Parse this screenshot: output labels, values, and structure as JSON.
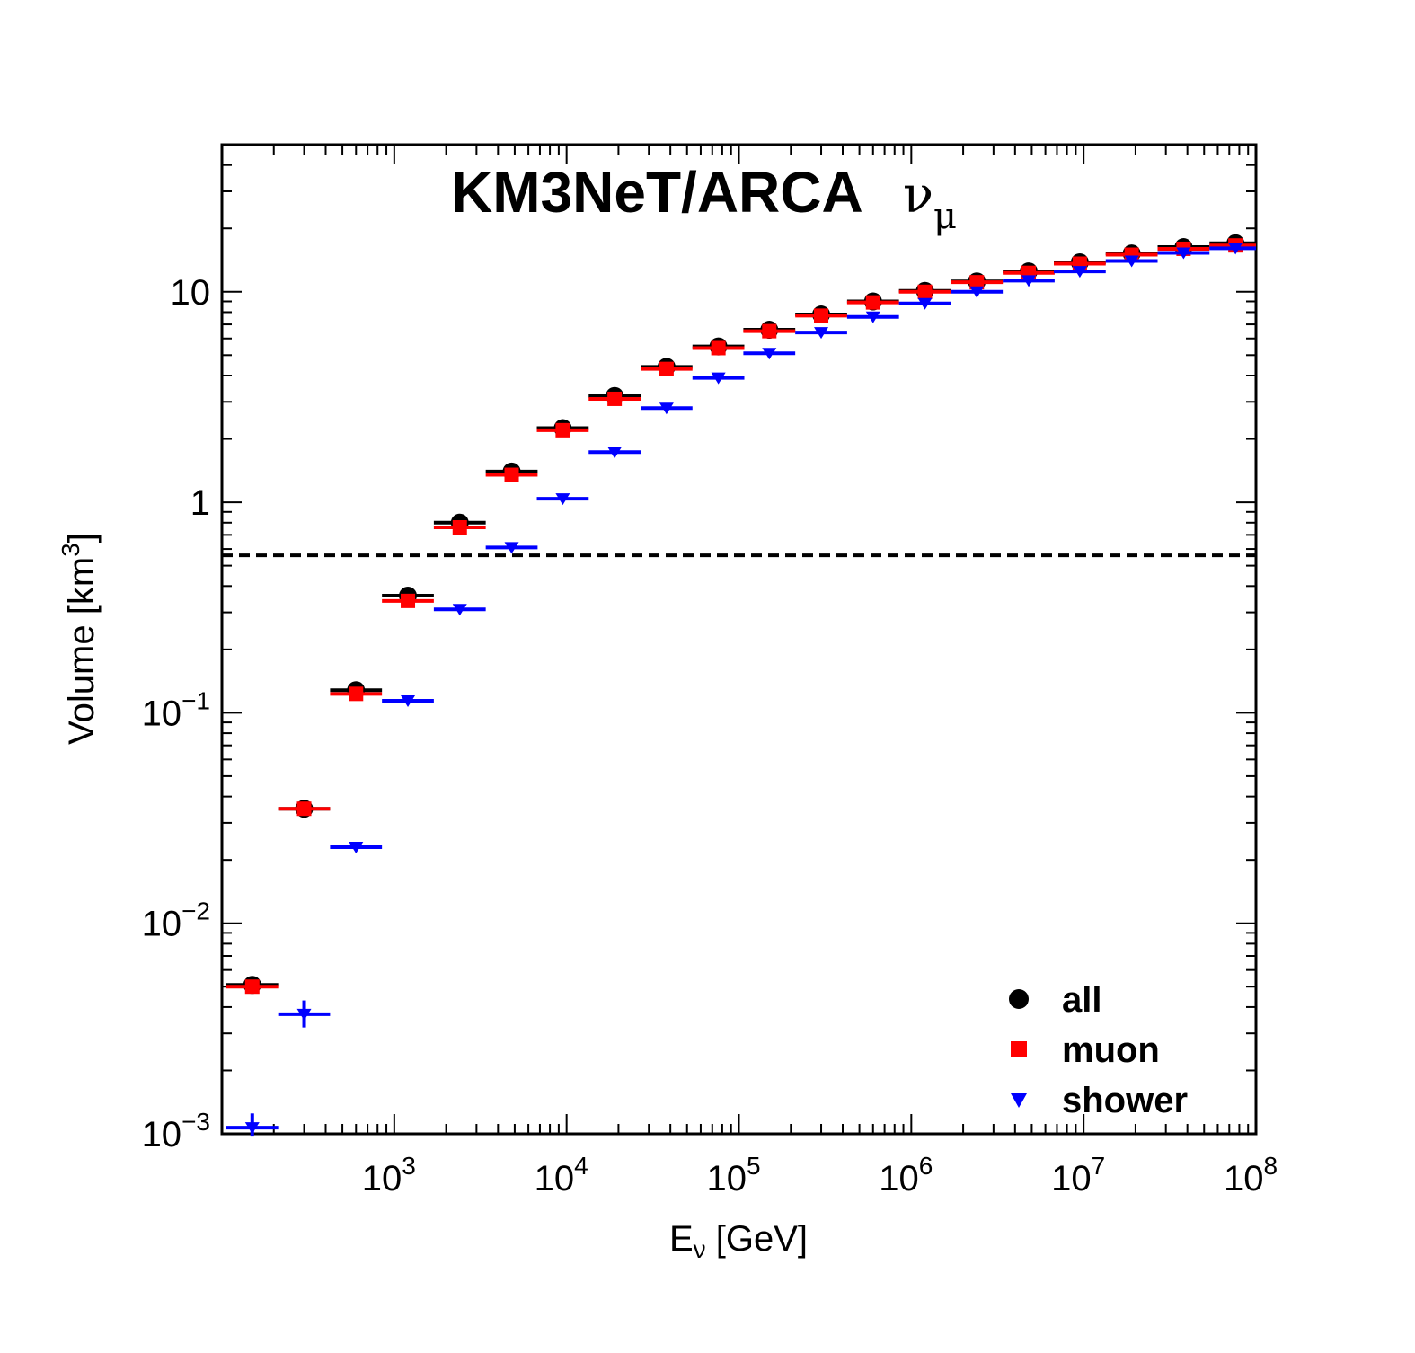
{
  "chart_data": {
    "type": "scatter",
    "title": "KM3NeT/ARCA",
    "title_symbol": "ν",
    "title_symbol_sub": "μ",
    "xlabel_main": "E",
    "xlabel_sub": "ν",
    "xlabel_rest": " [GeV]",
    "ylabel_main": "Volume [km",
    "ylabel_sup": "3",
    "ylabel_end": "]",
    "x_scale": "log",
    "y_scale": "log",
    "xlim": [
      100,
      100000000
    ],
    "ylim": [
      0.001,
      50
    ],
    "x_ticks": [
      {
        "value": 1000,
        "base": "10",
        "exp": "3"
      },
      {
        "value": 10000,
        "base": "10",
        "exp": "4"
      },
      {
        "value": 100000,
        "base": "10",
        "exp": "5"
      },
      {
        "value": 1000000,
        "base": "10",
        "exp": "6"
      },
      {
        "value": 10000000,
        "base": "10",
        "exp": "7"
      },
      {
        "value": 100000000,
        "base": "10",
        "exp": "8"
      }
    ],
    "y_ticks": [
      {
        "value": 0.001,
        "base": "10",
        "exp": "−3"
      },
      {
        "value": 0.01,
        "base": "10",
        "exp": "−2"
      },
      {
        "value": 0.1,
        "base": "10",
        "exp": "−1"
      },
      {
        "value": 1,
        "base": "1",
        "exp": ""
      },
      {
        "value": 10,
        "base": "10",
        "exp": ""
      }
    ],
    "reference_line": {
      "y": 0.56,
      "style": "dashed",
      "color": "#000000"
    },
    "bin_log_width": 0.301,
    "legend_position": "bottom-right",
    "grid": false,
    "series": [
      {
        "name": "all",
        "marker": "circle",
        "color": "#000000",
        "x": [
          150,
          300,
          600,
          1200,
          2400,
          4800,
          9500,
          19000,
          38000,
          76000,
          150000,
          300000,
          600000,
          1200000,
          2400000,
          4800000,
          9500000,
          19000000,
          38000000,
          76000000
        ],
        "y": [
          0.0051,
          0.035,
          0.128,
          0.36,
          0.8,
          1.4,
          2.25,
          3.2,
          4.4,
          5.5,
          6.6,
          7.8,
          9.0,
          10.1,
          11.2,
          12.5,
          13.8,
          15.2,
          16.3,
          17.0
        ]
      },
      {
        "name": "muon",
        "marker": "square",
        "color": "#ff0000",
        "x": [
          150,
          300,
          600,
          1200,
          2400,
          4800,
          9500,
          19000,
          38000,
          76000,
          150000,
          300000,
          600000,
          1200000,
          2400000,
          4800000,
          9500000,
          19000000,
          38000000,
          76000000
        ],
        "y": [
          0.005,
          0.035,
          0.123,
          0.34,
          0.76,
          1.35,
          2.2,
          3.1,
          4.3,
          5.4,
          6.5,
          7.7,
          8.9,
          10.0,
          11.1,
          12.3,
          13.6,
          15.0,
          16.0,
          16.6
        ]
      },
      {
        "name": "shower",
        "marker": "triangle-down",
        "color": "#0000ff",
        "x": [
          150,
          300,
          600,
          1200,
          2400,
          4800,
          9500,
          19000,
          38000,
          76000,
          150000,
          300000,
          600000,
          1200000,
          2400000,
          4800000,
          9500000,
          19000000,
          38000000,
          76000000
        ],
        "y": [
          0.00107,
          0.0037,
          0.023,
          0.114,
          0.31,
          0.61,
          1.04,
          1.73,
          2.8,
          3.9,
          5.1,
          6.4,
          7.6,
          8.8,
          10.0,
          11.3,
          12.5,
          14.0,
          15.3,
          16.1
        ],
        "error_bars": {
          "0": [
            0.00097,
            0.00125
          ],
          "1": [
            0.0032,
            0.0043
          ]
        }
      }
    ]
  }
}
